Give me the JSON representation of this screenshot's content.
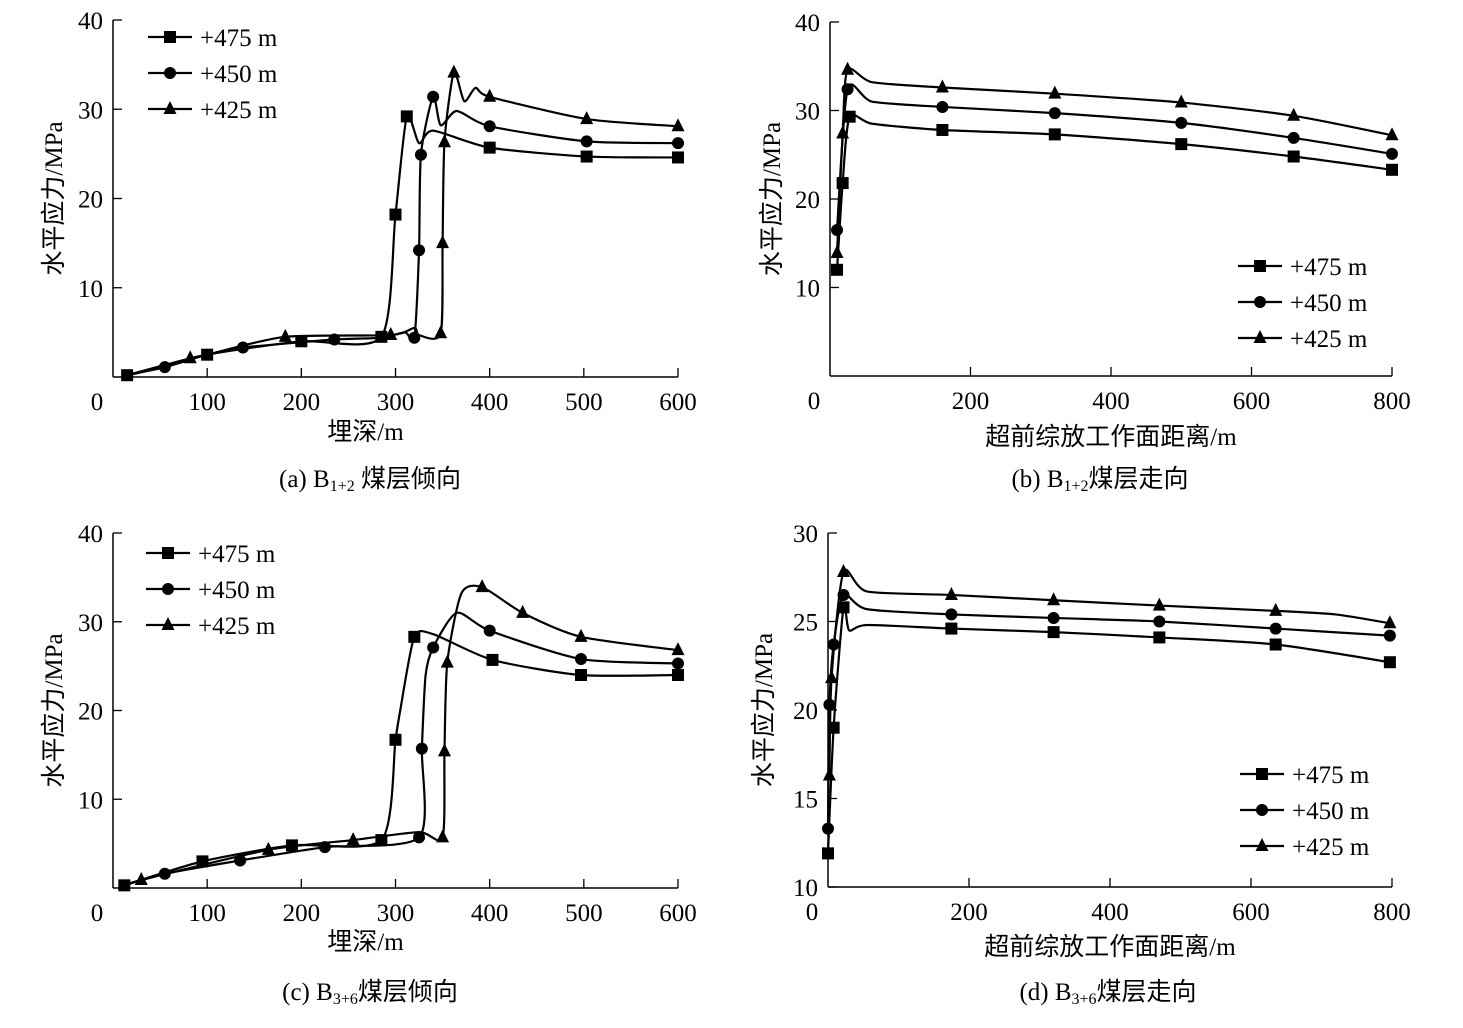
{
  "chart_data": [
    {
      "id": "a",
      "type": "line",
      "caption": {
        "prefix": "(a)  B",
        "sub": "1+2",
        "suffix": " 煤层倾向"
      },
      "xlabel": "埋深/m",
      "ylabel": "水平应力/MPa",
      "xlim": [
        0,
        600
      ],
      "ylim": [
        0,
        40
      ],
      "xticks": [
        0,
        100,
        200,
        300,
        400,
        500,
        600
      ],
      "yticks": [
        10,
        20,
        30,
        40
      ],
      "ytick_labels": [
        "10",
        "20",
        "30",
        "40"
      ],
      "grid": false,
      "legend_position": "top-left",
      "series": [
        {
          "name": "+475 m",
          "marker": "square",
          "x": [
            15,
            100,
            200,
            285,
            300,
            312,
            325,
            340,
            400,
            503,
            600
          ],
          "y": [
            0.2,
            2.5,
            4.0,
            4.5,
            18.2,
            29.2,
            26.2,
            27.6,
            25.7,
            24.7,
            24.6
          ],
          "markers_at": [
            0,
            1,
            2,
            3,
            4,
            5,
            8,
            9,
            10
          ]
        },
        {
          "name": "+450 m",
          "marker": "circle",
          "x": [
            15,
            55,
            100,
            138,
            235,
            285,
            310,
            320,
            325,
            327,
            340,
            348,
            365,
            400,
            503,
            600
          ],
          "y": [
            0.2,
            1.1,
            2.5,
            3.3,
            4.2,
            4.4,
            5.0,
            4.4,
            14.2,
            24.9,
            31.4,
            28.2,
            29.8,
            28.1,
            26.4,
            26.2
          ],
          "markers_at": [
            1,
            3,
            4,
            7,
            8,
            9,
            10,
            13,
            14,
            15
          ]
        },
        {
          "name": "+425 m",
          "marker": "triangle",
          "x": [
            15,
            82,
            100,
            183,
            295,
            320,
            325,
            348,
            350,
            352,
            362,
            373,
            385,
            400,
            503,
            600
          ],
          "y": [
            0.2,
            2.1,
            2.5,
            4.5,
            4.7,
            5.5,
            4.7,
            4.9,
            15.0,
            26.3,
            34.1,
            30.9,
            32.4,
            31.4,
            28.9,
            28.1
          ],
          "markers_at": [
            1,
            3,
            4,
            7,
            8,
            9,
            10,
            13,
            14,
            15
          ]
        }
      ]
    },
    {
      "id": "b",
      "type": "line",
      "caption": {
        "prefix": "(b)  B",
        "sub": "1+2",
        "suffix": "煤层走向"
      },
      "xlabel": "超前综放工作面距离/m",
      "ylabel": "水平应力/MPa",
      "xlim": [
        0,
        800
      ],
      "ylim": [
        0,
        40
      ],
      "xticks": [
        0,
        200,
        400,
        600,
        800
      ],
      "yticks": [
        10,
        20,
        30,
        40
      ],
      "ytick_labels": [
        "10",
        "20",
        "30",
        "40"
      ],
      "grid": false,
      "legend_position": "bottom-right",
      "series": [
        {
          "name": "+475 m",
          "marker": "square",
          "x": [
            10,
            18,
            28,
            60,
            160,
            320,
            500,
            660,
            800
          ],
          "y": [
            12.0,
            21.8,
            29.3,
            28.5,
            27.8,
            27.3,
            26.2,
            24.8,
            23.3
          ],
          "markers_at": [
            0,
            1,
            2,
            4,
            5,
            6,
            7,
            8
          ]
        },
        {
          "name": "+450 m",
          "marker": "circle",
          "x": [
            10,
            25,
            60,
            160,
            320,
            500,
            660,
            800
          ],
          "y": [
            16.5,
            32.4,
            31.0,
            30.4,
            29.7,
            28.6,
            26.9,
            25.1
          ],
          "markers_at": [
            0,
            1,
            3,
            4,
            5,
            6,
            7
          ]
        },
        {
          "name": "+425 m",
          "marker": "triangle",
          "x": [
            10,
            18,
            25,
            60,
            160,
            320,
            500,
            660,
            800
          ],
          "y": [
            13.9,
            27.4,
            34.6,
            33.2,
            32.6,
            31.9,
            30.9,
            29.4,
            27.2
          ],
          "markers_at": [
            0,
            1,
            2,
            4,
            5,
            6,
            7,
            8
          ]
        }
      ]
    },
    {
      "id": "c",
      "type": "line",
      "caption": {
        "prefix": "(c)  B",
        "sub": "3+6",
        "suffix": "煤层倾向"
      },
      "xlabel": "埋深/m",
      "ylabel": "水平应力/MPa",
      "xlim": [
        0,
        600
      ],
      "ylim": [
        0,
        40
      ],
      "xticks": [
        0,
        100,
        200,
        300,
        400,
        500,
        600
      ],
      "yticks": [
        10,
        20,
        30,
        40
      ],
      "ytick_labels": [
        "10",
        "20",
        "30",
        "40"
      ],
      "grid": false,
      "legend_position": "top-left",
      "series": [
        {
          "name": "+475 m",
          "marker": "square",
          "x": [
            12,
            95,
            190,
            285,
            300,
            305,
            320,
            340,
            403,
            497,
            600
          ],
          "y": [
            0.3,
            3.0,
            4.8,
            5.4,
            16.7,
            20.0,
            28.3,
            28.6,
            25.7,
            24.0,
            24.0
          ],
          "markers_at": [
            0,
            1,
            2,
            3,
            4,
            6,
            8,
            9,
            10
          ]
        },
        {
          "name": "+450 m",
          "marker": "circle",
          "x": [
            12,
            55,
            135,
            225,
            325,
            328,
            332,
            340,
            365,
            400,
            497,
            600
          ],
          "y": [
            0.3,
            1.6,
            3.1,
            4.6,
            5.7,
            15.7,
            24.0,
            27.1,
            31.0,
            29.0,
            25.8,
            25.3
          ],
          "markers_at": [
            1,
            2,
            3,
            4,
            5,
            7,
            9,
            10,
            11
          ]
        },
        {
          "name": "+425 m",
          "marker": "triangle",
          "x": [
            12,
            30,
            165,
            255,
            325,
            350,
            352,
            355,
            370,
            392,
            435,
            497,
            600
          ],
          "y": [
            0.3,
            0.9,
            4.3,
            5.4,
            6.3,
            5.7,
            15.4,
            25.4,
            33.2,
            33.9,
            31.0,
            28.3,
            26.8
          ],
          "markers_at": [
            1,
            2,
            3,
            5,
            6,
            7,
            9,
            10,
            11,
            12
          ]
        }
      ]
    },
    {
      "id": "d",
      "type": "line",
      "caption": {
        "prefix": "(d)  B",
        "sub": "3+6",
        "suffix": "煤层走向"
      },
      "xlabel": "超前综放工作面距离/m",
      "ylabel": "水平应力/MPa",
      "xlim": [
        0,
        800
      ],
      "ylim": [
        10,
        30
      ],
      "xticks": [
        0,
        200,
        400,
        600,
        800
      ],
      "yticks": [
        10,
        15,
        20,
        25,
        30
      ],
      "ytick_labels": [
        "10",
        "15",
        "20",
        "25",
        "30"
      ],
      "grid": false,
      "legend_position": "bottom-right",
      "series": [
        {
          "name": "+475 m",
          "marker": "square",
          "x": [
            0,
            8,
            22,
            30,
            55,
            175,
            320,
            470,
            635,
            797
          ],
          "y": [
            11.9,
            19.0,
            25.8,
            24.5,
            24.8,
            24.6,
            24.4,
            24.1,
            23.7,
            22.7
          ],
          "markers_at": [
            0,
            1,
            2,
            5,
            6,
            7,
            8,
            9
          ]
        },
        {
          "name": "+450 m",
          "marker": "circle",
          "x": [
            0,
            2,
            8,
            22,
            55,
            175,
            320,
            470,
            635,
            797
          ],
          "y": [
            13.3,
            20.3,
            23.7,
            26.5,
            25.7,
            25.4,
            25.2,
            25.0,
            24.6,
            24.2
          ],
          "markers_at": [
            0,
            1,
            2,
            3,
            5,
            6,
            7,
            8,
            9
          ]
        },
        {
          "name": "+425 m",
          "marker": "triangle",
          "x": [
            2,
            5,
            22,
            55,
            175,
            320,
            470,
            635,
            720,
            797
          ],
          "y": [
            16.3,
            21.8,
            27.8,
            26.7,
            26.5,
            26.2,
            25.9,
            25.6,
            25.4,
            24.9
          ],
          "markers_at": [
            0,
            1,
            2,
            4,
            5,
            6,
            7,
            9
          ]
        }
      ]
    }
  ]
}
